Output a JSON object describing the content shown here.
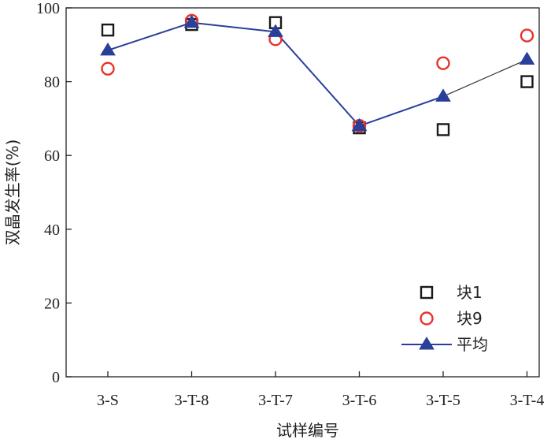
{
  "chart_data": {
    "type": "scatter",
    "xlabel": "试样编号",
    "ylabel": "双晶发生率(%)",
    "categories": [
      "3-S",
      "3-T-8",
      "3-T-7",
      "3-T-6",
      "3-T-5",
      "3-T-4"
    ],
    "ylim": [
      0,
      100
    ],
    "yticks": [
      0,
      20,
      40,
      60,
      80,
      100
    ],
    "grid": false,
    "legend_position": "bottom-right",
    "series": [
      {
        "name": "块1",
        "marker": "square",
        "color": "#1a1a1a",
        "values": [
          94,
          95.5,
          96,
          67.5,
          67,
          80
        ]
      },
      {
        "name": "块9",
        "marker": "circle",
        "color": "#e8332c",
        "values": [
          83.5,
          96.5,
          91.5,
          68,
          85,
          92.5
        ]
      },
      {
        "name": "平均",
        "marker": "triangle",
        "line": true,
        "color": "#2a3f99",
        "values": [
          88.5,
          96,
          93.5,
          68,
          76,
          86
        ]
      }
    ]
  }
}
